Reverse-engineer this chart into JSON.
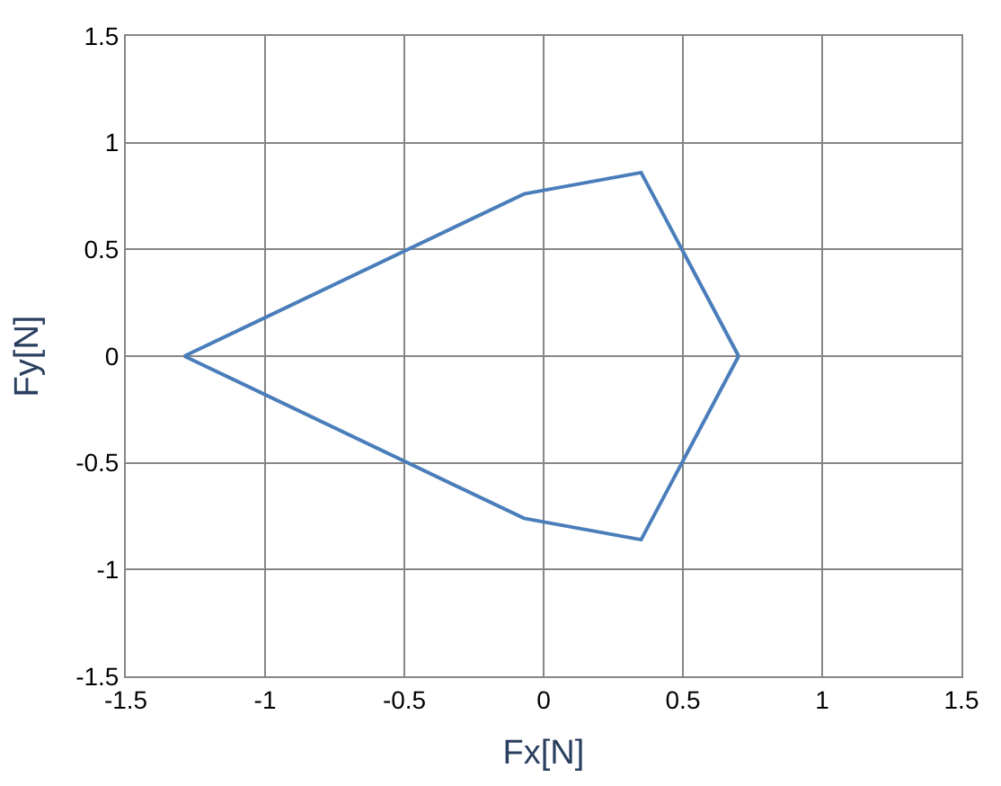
{
  "chart_data": {
    "type": "line",
    "xlabel": "Fx[N]",
    "ylabel": "Fy[N]",
    "series": [
      {
        "color": "#4a7ebb",
        "x": [
          -1.29,
          -0.07,
          0.35,
          0.7
        ],
        "values": [
          0,
          0.76,
          0.86,
          0
        ]
      },
      {
        "color": "#4a7ebb",
        "x": [
          -1.29,
          -0.07,
          0.35,
          0.7
        ],
        "values": [
          0,
          -0.76,
          -0.86,
          0
        ]
      }
    ],
    "xlim": [
      -1.5,
      1.5
    ],
    "xticks": [
      -1.5,
      -1,
      -0.5,
      0,
      0.5,
      1,
      1.5
    ],
    "ylim": [
      -1.5,
      1.5
    ],
    "yticks": [
      -1.5,
      -1,
      -0.5,
      0,
      0.5,
      1,
      1.5
    ],
    "grid": true,
    "marker": "none",
    "line_style": "solid"
  }
}
